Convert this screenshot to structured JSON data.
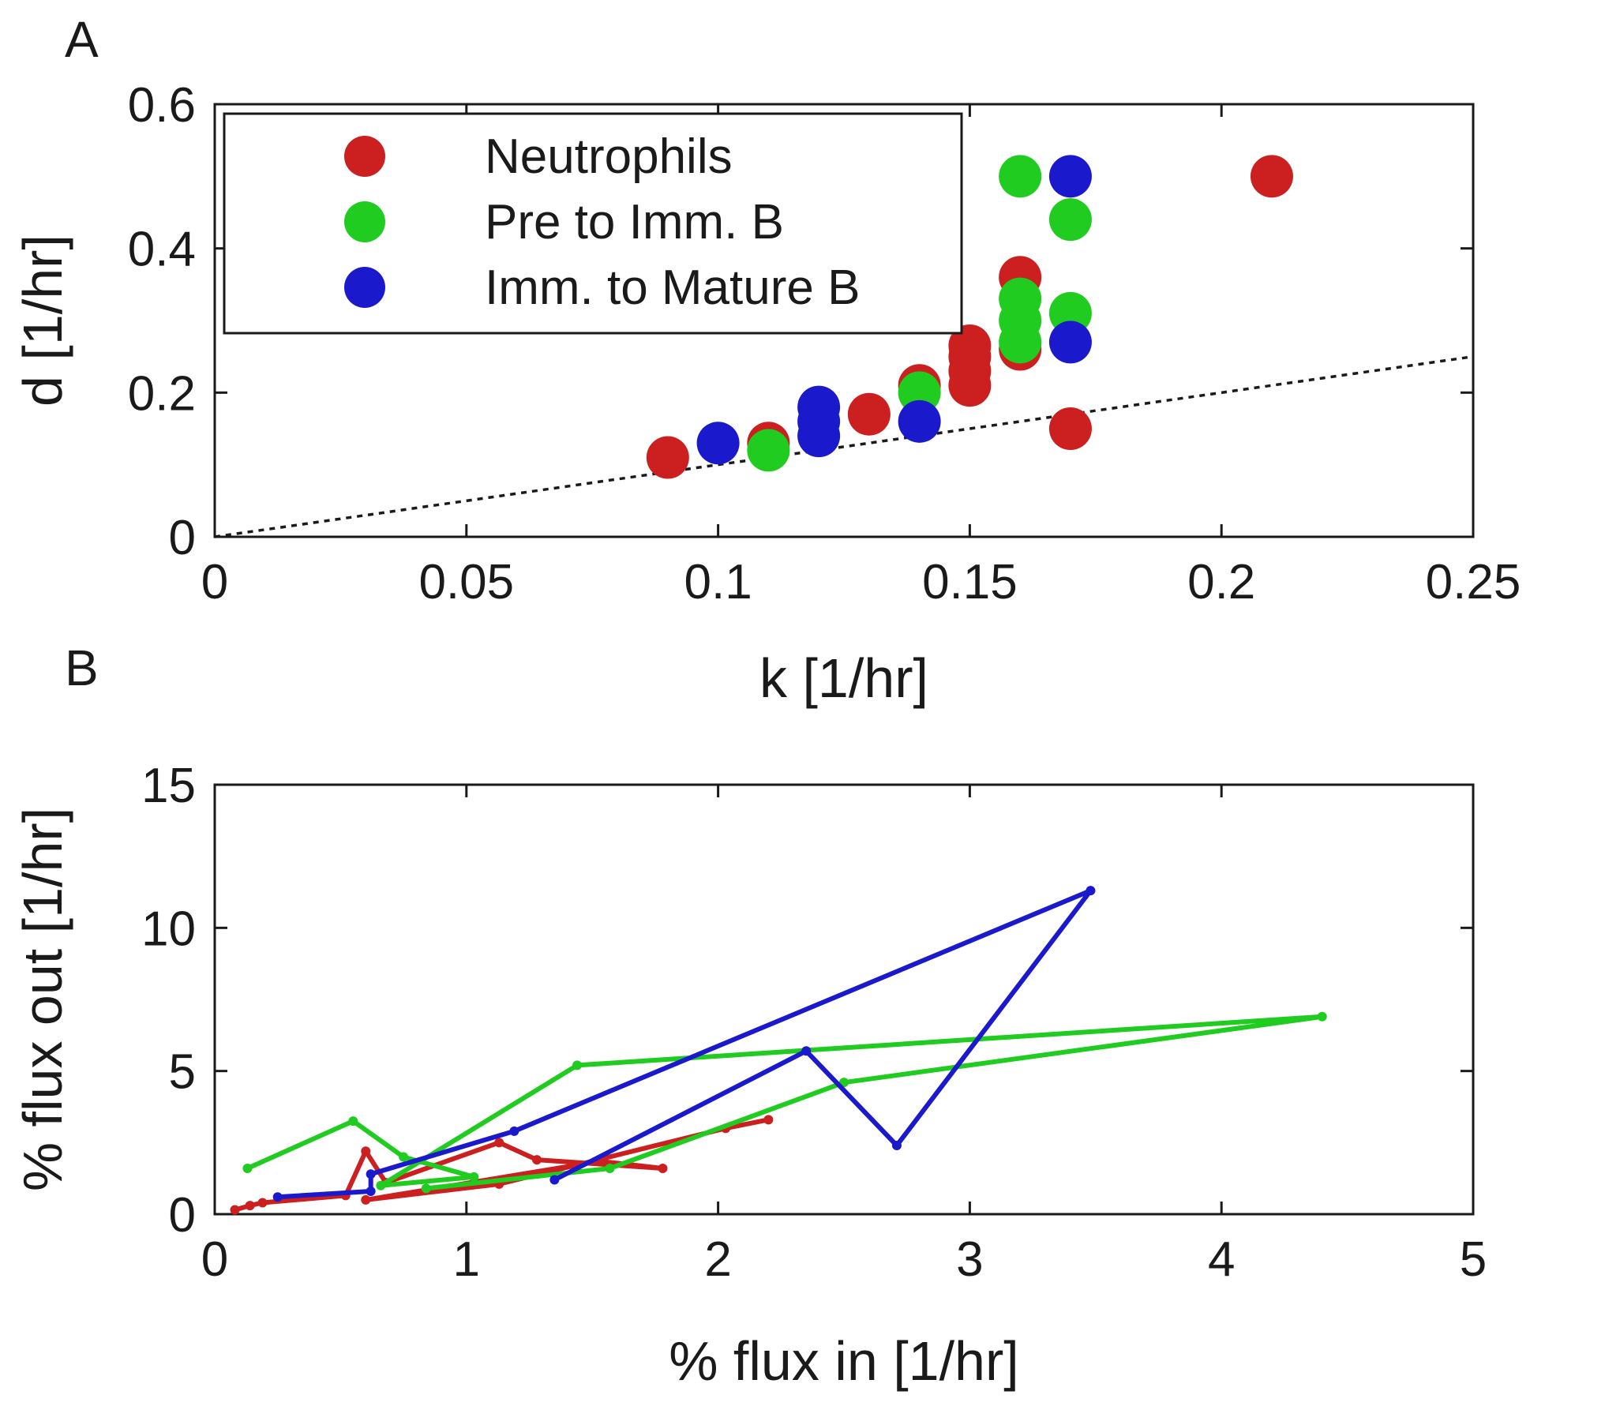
{
  "colors": {
    "neutrophils": "#cc1f1f",
    "pre_to_imm_b": "#1fcc1f",
    "imm_to_mature_b": "#1a1acc"
  },
  "chart_data": [
    {
      "panel": "A",
      "type": "scatter",
      "xlabel": "k [1/hr]",
      "ylabel": "d [1/hr]",
      "xlim": [
        0,
        0.25
      ],
      "ylim": [
        0,
        0.6
      ],
      "xticks": [
        "0",
        "0.05",
        "0.1",
        "0.15",
        "0.2",
        "0.25"
      ],
      "yticks": [
        "0",
        "0.2",
        "0.4",
        "0.6"
      ],
      "legend_position": "top-left",
      "reference_line": {
        "style": "dotted",
        "points": [
          [
            0,
            0
          ],
          [
            0.25,
            0.25
          ]
        ]
      },
      "series": [
        {
          "name": "Neutrophils",
          "color": "#cc1f1f",
          "points": [
            [
              0.09,
              0.11
            ],
            [
              0.11,
              0.13
            ],
            [
              0.13,
              0.17
            ],
            [
              0.14,
              0.21
            ],
            [
              0.15,
              0.21
            ],
            [
              0.15,
              0.23
            ],
            [
              0.15,
              0.25
            ],
            [
              0.15,
              0.265
            ],
            [
              0.16,
              0.26
            ],
            [
              0.16,
              0.36
            ],
            [
              0.17,
              0.15
            ],
            [
              0.21,
              0.5
            ]
          ]
        },
        {
          "name": "Pre to Imm. B",
          "color": "#1fcc1f",
          "points": [
            [
              0.11,
              0.12
            ],
            [
              0.14,
              0.2
            ],
            [
              0.16,
              0.27
            ],
            [
              0.16,
              0.3
            ],
            [
              0.16,
              0.33
            ],
            [
              0.16,
              0.5
            ],
            [
              0.17,
              0.31
            ],
            [
              0.17,
              0.44
            ]
          ]
        },
        {
          "name": "Imm. to Mature B",
          "color": "#1a1acc",
          "points": [
            [
              0.1,
              0.13
            ],
            [
              0.12,
              0.14
            ],
            [
              0.12,
              0.16
            ],
            [
              0.12,
              0.18
            ],
            [
              0.14,
              0.16
            ],
            [
              0.17,
              0.27
            ],
            [
              0.17,
              0.5
            ]
          ]
        }
      ]
    },
    {
      "panel": "B",
      "type": "line",
      "xlabel": "% flux in [1/hr]",
      "ylabel": "% flux out [1/hr]",
      "xlim": [
        0,
        5
      ],
      "ylim": [
        0,
        15
      ],
      "xticks": [
        "0",
        "1",
        "2",
        "3",
        "4",
        "5"
      ],
      "yticks": [
        "0",
        "5",
        "10",
        "15"
      ],
      "series": [
        {
          "color": "#cc1f1f",
          "points": [
            [
              0.08,
              0.15
            ],
            [
              0.14,
              0.3
            ],
            [
              0.19,
              0.4
            ],
            [
              0.52,
              0.65
            ],
            [
              0.6,
              2.2
            ],
            [
              0.68,
              1.1
            ],
            [
              1.13,
              2.5
            ],
            [
              1.28,
              1.9
            ],
            [
              1.78,
              1.6
            ],
            [
              1.53,
              1.85
            ],
            [
              0.6,
              0.5
            ],
            [
              1.13,
              1.05
            ],
            [
              2.03,
              3.0
            ],
            [
              2.2,
              3.3
            ]
          ]
        },
        {
          "color": "#1fcc1f",
          "points": [
            [
              0.13,
              1.6
            ],
            [
              0.55,
              3.25
            ],
            [
              0.75,
              2.0
            ],
            [
              1.03,
              1.3
            ],
            [
              0.66,
              1.0
            ],
            [
              1.44,
              5.2
            ],
            [
              4.4,
              6.9
            ],
            [
              2.5,
              4.6
            ],
            [
              1.57,
              1.6
            ],
            [
              0.84,
              0.9
            ]
          ]
        },
        {
          "color": "#1a1acc",
          "points": [
            [
              0.25,
              0.6
            ],
            [
              0.62,
              0.8
            ],
            [
              0.62,
              1.4
            ],
            [
              1.19,
              2.9
            ],
            [
              3.48,
              11.3
            ],
            [
              2.71,
              2.4
            ],
            [
              2.35,
              5.7
            ],
            [
              1.35,
              1.2
            ]
          ]
        }
      ]
    }
  ]
}
